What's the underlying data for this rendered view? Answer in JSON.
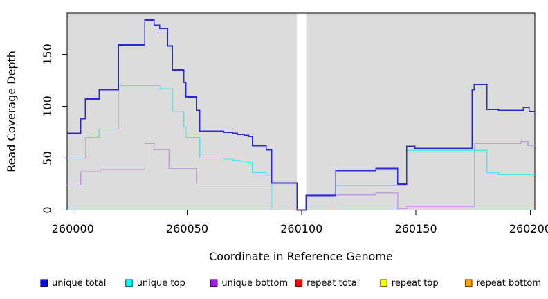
{
  "chart_data": {
    "type": "line",
    "step_mode": "post",
    "title": "",
    "xlabel": "Coordinate in Reference Genome",
    "ylabel": "Read Coverage Depth",
    "x_ticks": [
      260000,
      260050,
      260100,
      260150,
      260200
    ],
    "y_ticks": [
      0,
      50,
      100,
      150
    ],
    "x_range": [
      259997.5,
      260202
    ],
    "y_range": [
      0,
      189.7
    ],
    "grid": "off",
    "panel_background": "#dcdcdc",
    "coverage_gap_x": [
      260098,
      260102
    ],
    "legend_position": "bottom",
    "draw_order": [
      "repeat total",
      "repeat top",
      "repeat bottom",
      "unique bottom",
      "unique top",
      "unique total"
    ],
    "series": [
      {
        "name": "unique total",
        "color": "#2b2bd5",
        "width": 1.6,
        "segments": [
          [
            [
              259997.5,
              74
            ],
            [
              260003.5,
              88
            ],
            [
              260005.5,
              107
            ],
            [
              260011.5,
              116
            ],
            [
              260020,
              159
            ],
            [
              260031.5,
              183
            ],
            [
              260035.5,
              178
            ],
            [
              260038,
              175
            ],
            [
              260041.5,
              158
            ],
            [
              260043.5,
              135
            ],
            [
              260048.5,
              123
            ],
            [
              260049.5,
              109
            ],
            [
              260054,
              96
            ],
            [
              260055.5,
              76
            ],
            [
              260066,
              75
            ],
            [
              260070,
              74
            ],
            [
              260072,
              73
            ],
            [
              260075,
              72
            ],
            [
              260077,
              71
            ],
            [
              260078.5,
              62
            ],
            [
              260084.5,
              58
            ],
            [
              260087,
              26
            ],
            [
              260098,
              0
            ],
            [
              260102,
              14
            ],
            [
              260115,
              38
            ],
            [
              260132.5,
              40
            ],
            [
              260142,
              25
            ],
            [
              260146,
              61.5
            ],
            [
              260149.5,
              59.5
            ],
            [
              260174.5,
              116
            ],
            [
              260175.5,
              121
            ],
            [
              260181,
              97
            ],
            [
              260186,
              96
            ],
            [
              260197,
              99
            ],
            [
              260199.5,
              95
            ],
            [
              260202,
              95
            ]
          ]
        ]
      },
      {
        "name": "unique top",
        "color": "#4fe3f0",
        "width": 1.3,
        "segments": [
          [
            [
              259997.5,
              50
            ],
            [
              260005.5,
              70
            ],
            [
              260011.5,
              78
            ],
            [
              260020,
              120
            ],
            [
              260038,
              117
            ],
            [
              260043.5,
              95
            ],
            [
              260048.5,
              80
            ],
            [
              260049.5,
              70
            ],
            [
              260055.5,
              50
            ],
            [
              260066,
              49
            ],
            [
              260070,
              48
            ],
            [
              260073,
              47
            ],
            [
              260076,
              46
            ],
            [
              260078.5,
              36
            ],
            [
              260084.5,
              33
            ],
            [
              260087,
              0
            ],
            [
              260098,
              0
            ]
          ],
          [
            [
              260102,
              0
            ],
            [
              260115,
              23.5
            ],
            [
              260146,
              57.5
            ],
            [
              260181,
              36
            ],
            [
              260186,
              34
            ],
            [
              260202,
              34
            ]
          ]
        ]
      },
      {
        "name": "unique bottom",
        "color": "#c59ae5",
        "width": 1.3,
        "segments": [
          [
            [
              259997.5,
              24
            ],
            [
              260003.5,
              37
            ],
            [
              260012,
              39
            ],
            [
              260031.5,
              64
            ],
            [
              260035.5,
              58
            ],
            [
              260042,
              40
            ],
            [
              260054,
              26
            ],
            [
              260098,
              0
            ]
          ],
          [
            [
              260102,
              14.5
            ],
            [
              260132.5,
              16.5
            ],
            [
              260142,
              1.5
            ],
            [
              260146,
              3.5
            ],
            [
              260175.5,
              64
            ],
            [
              260196,
              66
            ],
            [
              260199,
              62
            ],
            [
              260202,
              62
            ]
          ]
        ]
      },
      {
        "name": "repeat total",
        "color": "#dd0000",
        "width": 1.3,
        "segments": [
          [
            [
              259997.5,
              0
            ],
            [
              260098,
              0
            ]
          ],
          [
            [
              260102,
              0
            ],
            [
              260202,
              0
            ]
          ]
        ]
      },
      {
        "name": "repeat top",
        "color": "#f2f20a",
        "width": 1.3,
        "segments": [
          [
            [
              259997.5,
              0
            ],
            [
              260098,
              0
            ]
          ],
          [
            [
              260102,
              0
            ],
            [
              260202,
              0
            ]
          ]
        ]
      },
      {
        "name": "repeat bottom",
        "color": "#ff9d26",
        "width": 1.3,
        "segments": [
          [
            [
              259997.5,
              0
            ],
            [
              260098,
              0
            ]
          ],
          [
            [
              260102,
              0
            ],
            [
              260202,
              0
            ]
          ]
        ]
      }
    ],
    "legend": [
      {
        "label": "unique total",
        "fill": "#0f0fe8",
        "border": "#000080"
      },
      {
        "label": "unique top",
        "fill": "#00ffff",
        "border": "#006b75"
      },
      {
        "label": "unique bottom",
        "fill": "#a020f0",
        "border": "#440a6e"
      },
      {
        "label": "repeat total",
        "fill": "#ff0000",
        "border": "#6e0000"
      },
      {
        "label": "repeat top",
        "fill": "#ffff00",
        "border": "#6e6e00"
      },
      {
        "label": "repeat bottom",
        "fill": "#ffa500",
        "border": "#6e4700"
      }
    ]
  }
}
